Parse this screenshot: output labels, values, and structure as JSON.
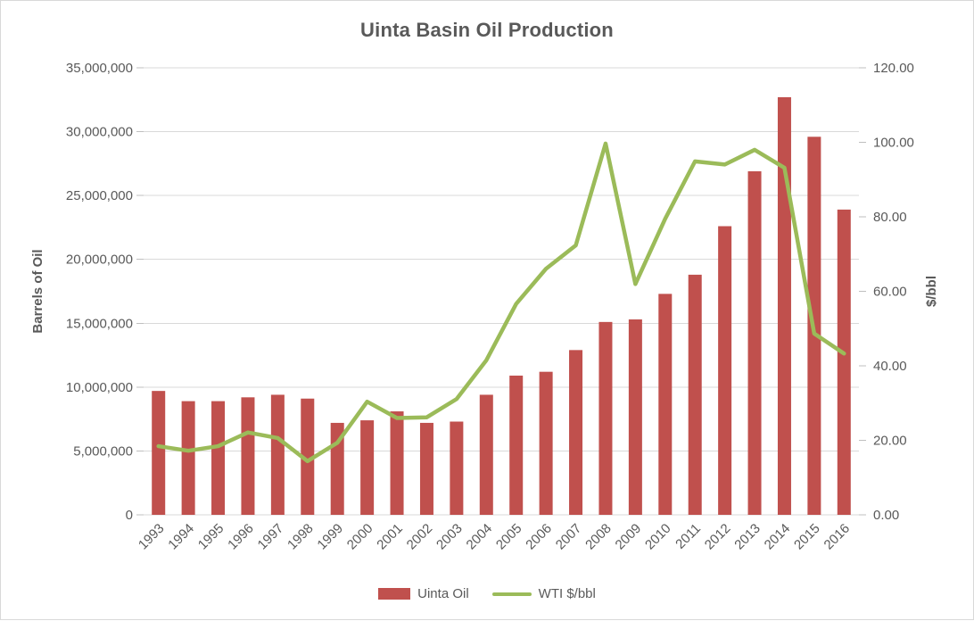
{
  "chart_data": {
    "type": "combo",
    "title": "Uinta Basin Oil Production",
    "categories": [
      "1993",
      "1994",
      "1995",
      "1996",
      "1997",
      "1998",
      "1999",
      "2000",
      "2001",
      "2002",
      "2003",
      "2004",
      "2005",
      "2006",
      "2007",
      "2008",
      "2009",
      "2010",
      "2011",
      "2012",
      "2013",
      "2014",
      "2015",
      "2016"
    ],
    "series": [
      {
        "name": "Uinta Oil",
        "type": "bar",
        "axis": "left",
        "color": "#C0504D",
        "values": [
          9700000,
          8900000,
          8900000,
          9200000,
          9400000,
          9100000,
          7200000,
          7400000,
          8100000,
          7200000,
          7300000,
          9400000,
          10900000,
          11200000,
          12900000,
          15100000,
          15300000,
          17300000,
          18800000,
          22600000,
          26900000,
          32700000,
          29600000,
          23900000
        ]
      },
      {
        "name": "WTI $/bbl",
        "type": "line",
        "axis": "right",
        "color": "#9BBB59",
        "values": [
          18.43,
          17.2,
          18.43,
          22.12,
          20.61,
          14.42,
          19.34,
          30.38,
          25.98,
          26.18,
          31.08,
          41.51,
          56.64,
          66.05,
          72.34,
          99.67,
          61.95,
          79.48,
          94.88,
          94.05,
          97.98,
          93.17,
          48.66,
          43.29
        ]
      }
    ],
    "left_axis": {
      "title": "Barrels of Oil",
      "min": 0,
      "max": 35000000,
      "tick_labels": [
        "0",
        "5,000,000",
        "10,000,000",
        "15,000,000",
        "20,000,000",
        "25,000,000",
        "30,000,000",
        "35,000,000"
      ]
    },
    "right_axis": {
      "title": "$/bbl",
      "min": 0,
      "max": 120,
      "tick_labels": [
        "0.00",
        "20.00",
        "40.00",
        "60.00",
        "80.00",
        "100.00",
        "120.00"
      ]
    },
    "grid": true,
    "legend_position": "bottom"
  },
  "legend": {
    "items": [
      {
        "label": "Uinta Oil"
      },
      {
        "label": "WTI $/bbl"
      }
    ]
  },
  "theme": {
    "text_color": "#595959",
    "gridline_color": "#d9d9d9",
    "tick_color": "#bfbfbf",
    "background": "#ffffff",
    "border": "#d9d9d9"
  }
}
